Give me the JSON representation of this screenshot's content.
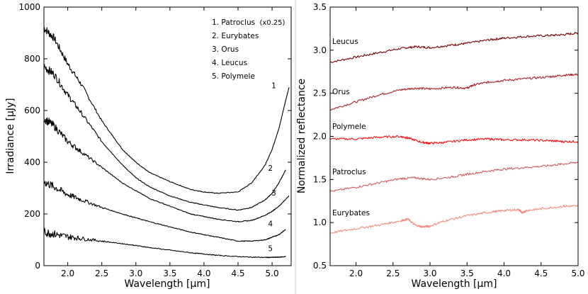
{
  "chart_data": [
    {
      "type": "line",
      "xlabel": "Wavelength [μm]",
      "ylabel": "Irradiance [μJy]",
      "xlim": [
        1.65,
        5.28
      ],
      "ylim": [
        0,
        1000
      ],
      "xticks": [
        2.0,
        2.5,
        3.0,
        3.5,
        4.0,
        4.5,
        5.0
      ],
      "xtick_labels": [
        "2.0",
        "2.5",
        "3.0",
        "3.5",
        "4.0",
        "4.5",
        "5.0"
      ],
      "yticks": [
        0,
        200,
        400,
        600,
        800,
        1000
      ],
      "ytick_labels": [
        "0",
        "200",
        "400",
        "600",
        "800",
        "1000"
      ],
      "legend": {
        "position": "top-right",
        "entries": [
          {
            "text": "1. Patroclus",
            "note": "(x0.25)"
          },
          {
            "text": "2. Eurybates"
          },
          {
            "text": "3. Orus"
          },
          {
            "text": "4. Leucus"
          },
          {
            "text": "5. Polymele"
          }
        ]
      },
      "series": [
        {
          "name": "Patroclus",
          "label": "1",
          "x": [
            1.65,
            1.8,
            2.0,
            2.2,
            2.5,
            2.8,
            3.0,
            3.2,
            3.5,
            3.8,
            4.0,
            4.2,
            4.5,
            4.7,
            4.9,
            5.0,
            5.1,
            5.2,
            5.25
          ],
          "y": [
            920,
            880,
            780,
            700,
            560,
            450,
            400,
            360,
            325,
            295,
            285,
            280,
            285,
            320,
            390,
            450,
            530,
            640,
            690
          ]
        },
        {
          "name": "Eurybates",
          "label": "2",
          "x": [
            1.65,
            1.8,
            2.0,
            2.2,
            2.5,
            2.8,
            3.0,
            3.2,
            3.5,
            3.8,
            4.0,
            4.2,
            4.5,
            4.7,
            4.9,
            5.0,
            5.1,
            5.2
          ],
          "y": [
            770,
            740,
            660,
            590,
            480,
            390,
            340,
            305,
            270,
            245,
            235,
            225,
            215,
            225,
            255,
            280,
            320,
            370
          ]
        },
        {
          "name": "Orus",
          "label": "3",
          "x": [
            1.65,
            1.8,
            2.0,
            2.2,
            2.5,
            2.8,
            3.0,
            3.2,
            3.5,
            3.8,
            4.0,
            4.2,
            4.5,
            4.7,
            4.9,
            5.0,
            5.1,
            5.25
          ],
          "y": [
            570,
            540,
            480,
            440,
            380,
            320,
            290,
            260,
            230,
            200,
            190,
            180,
            170,
            175,
            195,
            210,
            230,
            270
          ]
        },
        {
          "name": "Leucus",
          "label": "4",
          "x": [
            1.65,
            1.8,
            2.0,
            2.2,
            2.5,
            2.8,
            3.0,
            3.2,
            3.5,
            3.8,
            4.0,
            4.2,
            4.5,
            4.7,
            4.9,
            5.0,
            5.1,
            5.2
          ],
          "y": [
            325,
            305,
            275,
            255,
            225,
            200,
            185,
            170,
            150,
            130,
            120,
            110,
            95,
            95,
            100,
            110,
            120,
            140
          ]
        },
        {
          "name": "Polymele",
          "label": "5",
          "x": [
            1.65,
            1.8,
            2.0,
            2.2,
            2.5,
            2.8,
            3.0,
            3.2,
            3.5,
            3.8,
            4.0,
            4.2,
            4.5,
            4.7,
            4.9,
            5.0,
            5.1,
            5.2
          ],
          "y": [
            130,
            122,
            112,
            105,
            95,
            85,
            78,
            70,
            60,
            50,
            45,
            40,
            35,
            33,
            32,
            32,
            33,
            35
          ]
        }
      ]
    },
    {
      "type": "line",
      "xlabel": "Wavelength [μm]",
      "ylabel": "Normalized reflectance",
      "xlim": [
        1.65,
        5.0
      ],
      "ylim": [
        0.5,
        3.5
      ],
      "xticks": [
        2.0,
        2.5,
        3.0,
        3.5,
        4.0,
        4.5,
        5.0
      ],
      "xtick_labels": [
        "2.0",
        "2.5",
        "3.0",
        "3.5",
        "4.0",
        "4.5",
        "5.0"
      ],
      "yticks": [
        0.5,
        1.0,
        1.5,
        2.0,
        2.5,
        3.0,
        3.5
      ],
      "ytick_labels": [
        "0.5",
        "1.0",
        "1.5",
        "2.0",
        "2.5",
        "3.0",
        "3.5"
      ],
      "series": [
        {
          "name": "Leucus",
          "color": "#7a0000",
          "x": [
            1.65,
            2.0,
            2.3,
            2.6,
            2.8,
            3.0,
            3.3,
            3.5,
            3.8,
            4.0,
            4.3,
            4.6,
            4.8,
            5.0
          ],
          "y": [
            2.86,
            2.92,
            2.97,
            3.02,
            3.04,
            3.03,
            3.06,
            3.08,
            3.12,
            3.14,
            3.16,
            3.17,
            3.18,
            3.2
          ]
        },
        {
          "name": "Orus",
          "color": "#b0202a",
          "x": [
            1.65,
            2.0,
            2.3,
            2.6,
            2.8,
            3.0,
            3.3,
            3.5,
            3.6,
            3.8,
            4.0,
            4.3,
            4.6,
            4.8,
            5.0
          ],
          "y": [
            2.31,
            2.4,
            2.48,
            2.54,
            2.56,
            2.55,
            2.57,
            2.56,
            2.6,
            2.63,
            2.65,
            2.67,
            2.69,
            2.71,
            2.72
          ]
        },
        {
          "name": "Polymele",
          "color": "#ee1111",
          "x": [
            1.65,
            2.0,
            2.3,
            2.6,
            2.7,
            2.9,
            3.0,
            3.2,
            3.5,
            3.8,
            4.0,
            4.3,
            4.6,
            4.8,
            5.0
          ],
          "y": [
            1.97,
            1.97,
            1.99,
            2.0,
            1.98,
            1.93,
            1.92,
            1.93,
            1.96,
            1.97,
            1.96,
            1.96,
            1.95,
            1.94,
            1.94
          ]
        },
        {
          "name": "Patroclus",
          "color": "#cf6060",
          "x": [
            1.65,
            2.0,
            2.3,
            2.6,
            2.8,
            3.0,
            3.3,
            3.5,
            3.8,
            4.0,
            4.3,
            4.6,
            4.8,
            5.0
          ],
          "y": [
            1.36,
            1.41,
            1.46,
            1.51,
            1.52,
            1.5,
            1.53,
            1.56,
            1.6,
            1.62,
            1.64,
            1.66,
            1.68,
            1.7
          ]
        },
        {
          "name": "Eurybates",
          "color": "#f28b7e",
          "x": [
            1.65,
            2.0,
            2.3,
            2.6,
            2.7,
            2.8,
            2.9,
            3.0,
            3.2,
            3.5,
            3.8,
            4.0,
            4.2,
            4.25,
            4.3,
            4.5,
            4.8,
            5.0
          ],
          "y": [
            0.88,
            0.93,
            0.97,
            1.02,
            1.04,
            0.97,
            0.95,
            0.96,
            1.02,
            1.08,
            1.12,
            1.14,
            1.15,
            1.11,
            1.14,
            1.16,
            1.19,
            1.19
          ]
        }
      ],
      "annotations": [
        "Leucus",
        "Orus",
        "Polymele",
        "Patroclus",
        "Eurybates"
      ]
    }
  ]
}
